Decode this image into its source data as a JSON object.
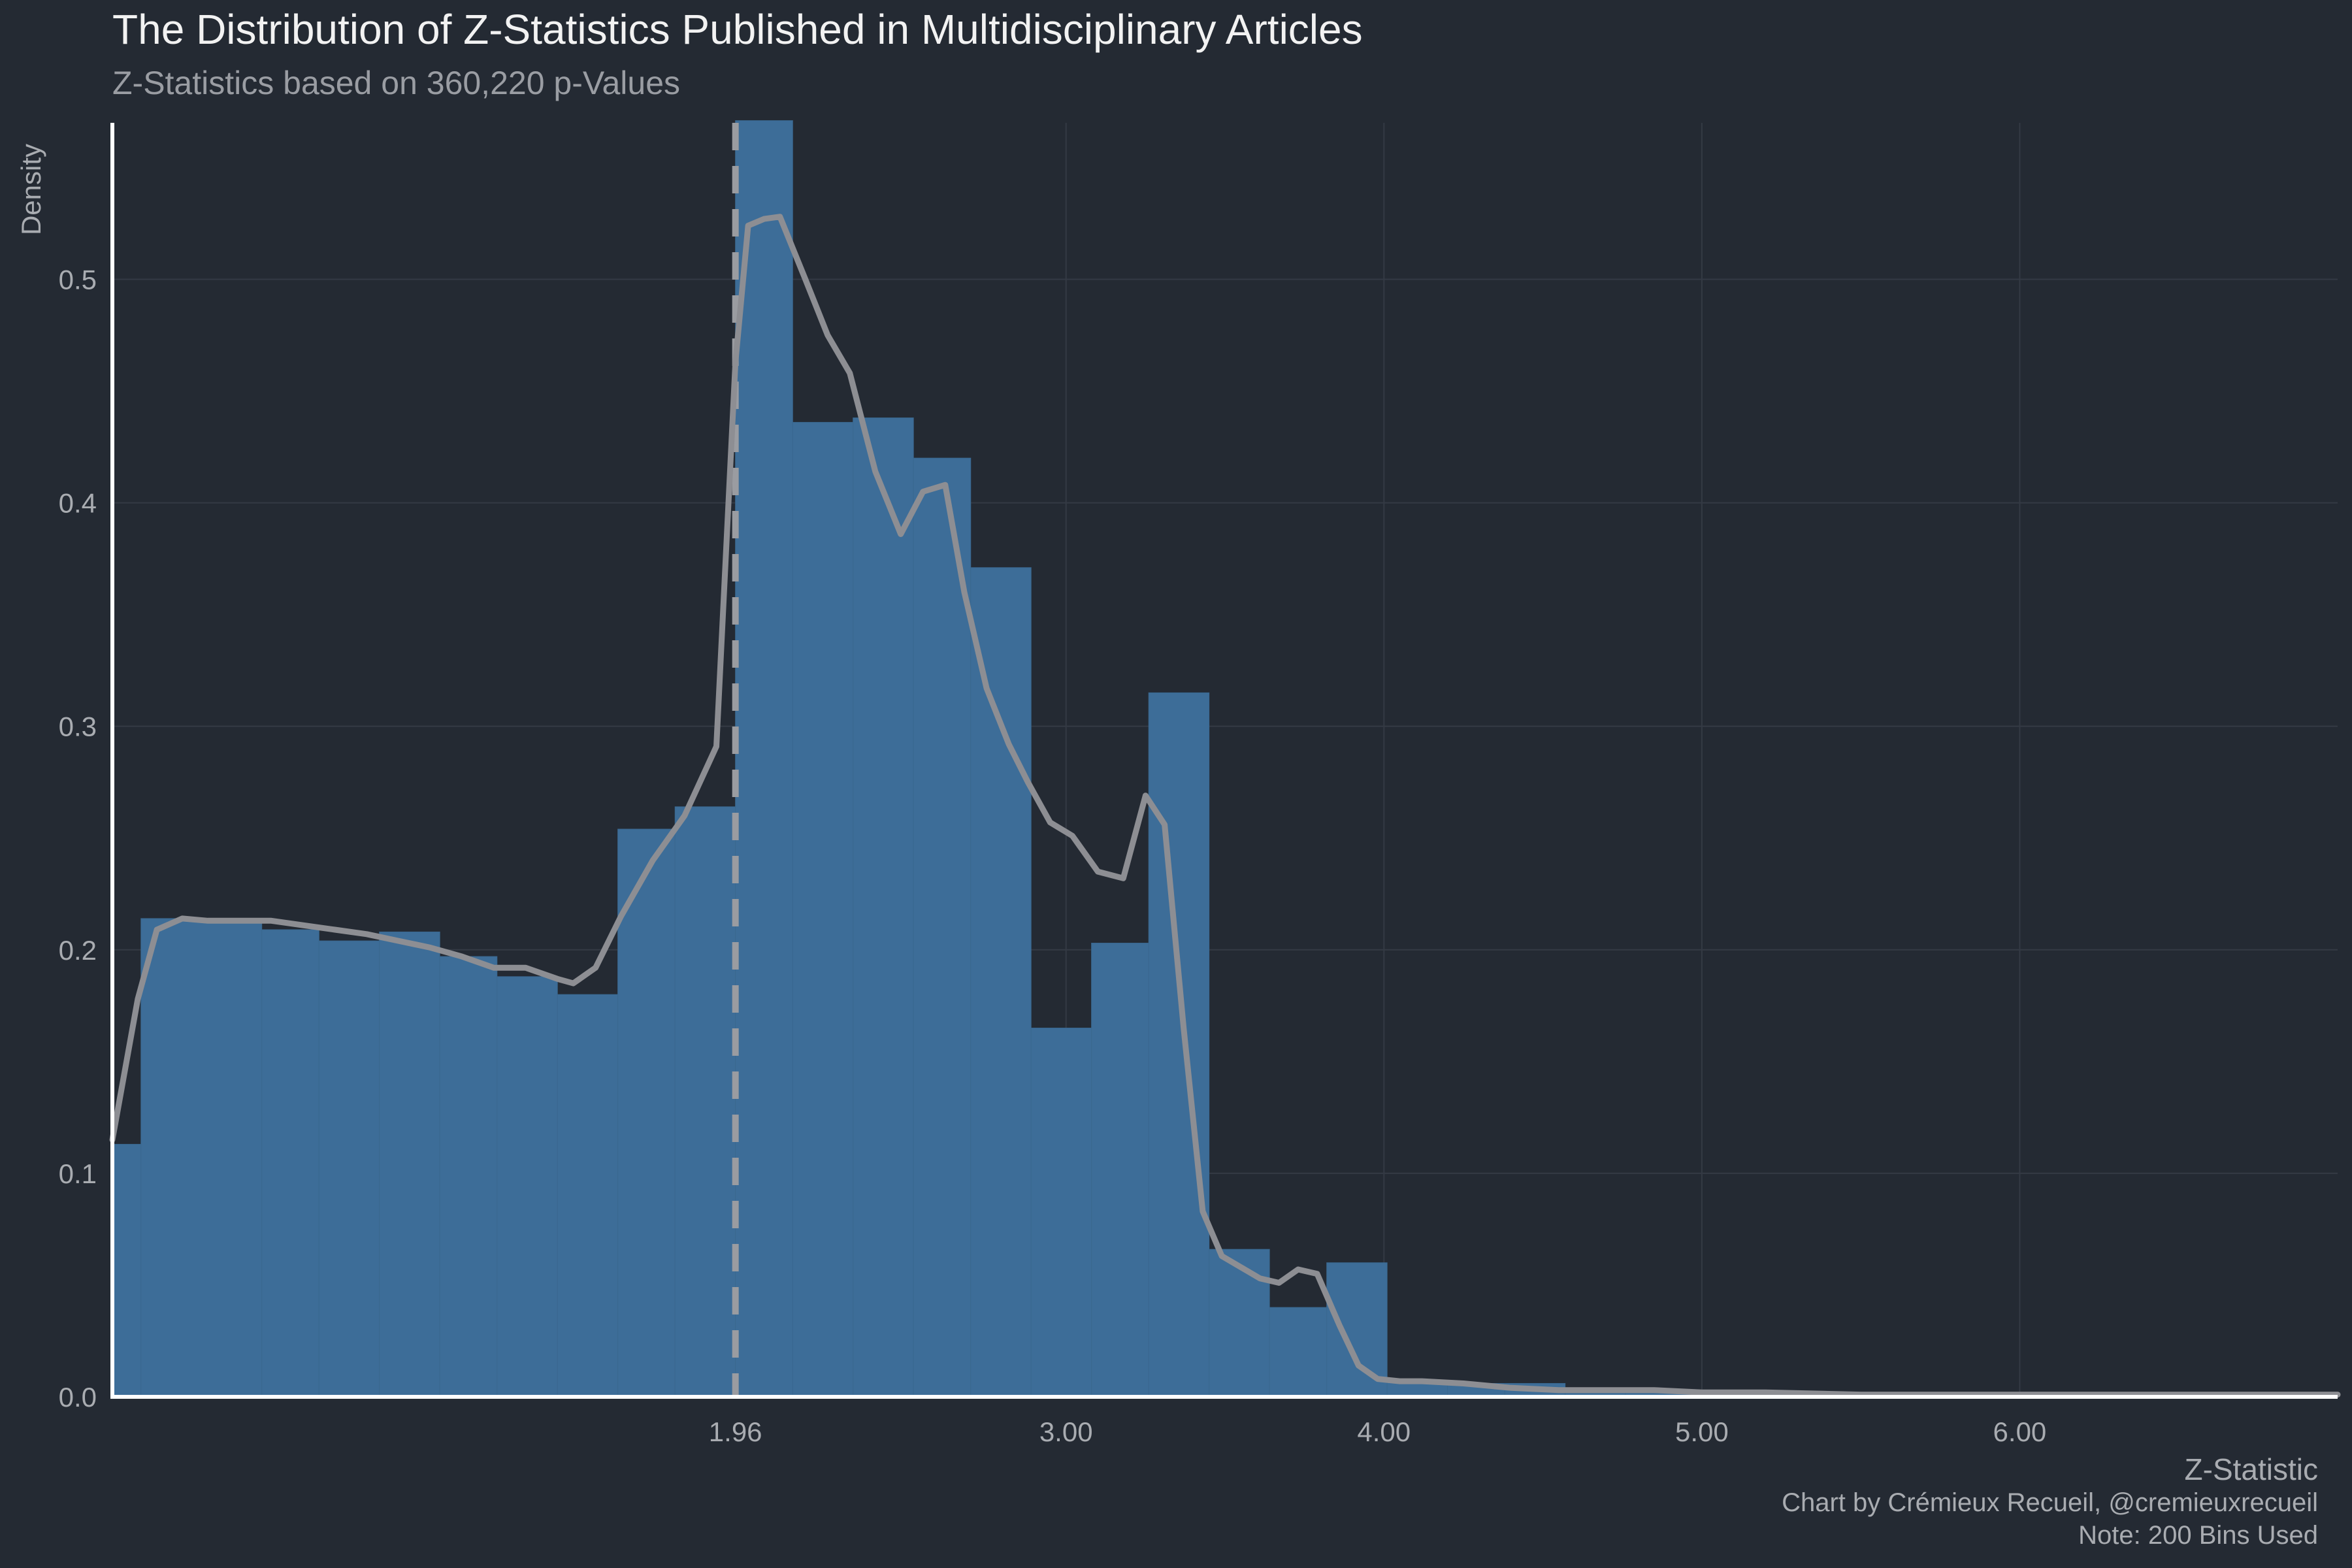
{
  "title": "The Distribution of Z-Statistics Published in Multidisciplinary Articles",
  "subtitle": "Z-Statistics based on 360,220 p-Values",
  "xlabel": "Z-Statistic",
  "ylabel": "Density",
  "caption": [
    "Chart by Crémieux Recueil, @cremieuxrecueil",
    "Note: 200 Bins Used"
  ],
  "colors": {
    "background": "#242a33",
    "bar": "#3d6d98",
    "density": "#8d8e93",
    "grid": "#343a44",
    "text": "#a9acb1"
  },
  "chart_data": {
    "type": "bar",
    "xlim": [
      0,
      7
    ],
    "ylim": [
      0,
      0.57
    ],
    "x_ticks": [
      {
        "value": 1.96,
        "label": "1.96"
      },
      {
        "value": 3.0,
        "label": "3.00"
      },
      {
        "value": 4.0,
        "label": "4.00"
      },
      {
        "value": 5.0,
        "label": "5.00"
      },
      {
        "value": 6.0,
        "label": "6.00"
      }
    ],
    "y_ticks": [
      {
        "value": 0.0,
        "label": "0.0"
      },
      {
        "value": 0.1,
        "label": "0.1"
      },
      {
        "value": 0.2,
        "label": "0.2"
      },
      {
        "value": 0.3,
        "label": "0.3"
      },
      {
        "value": 0.4,
        "label": "0.4"
      },
      {
        "value": 0.5,
        "label": "0.5"
      }
    ],
    "vline": 1.96,
    "bins": [
      {
        "x0": 0.0,
        "x1": 0.09,
        "y": 0.113
      },
      {
        "x0": 0.09,
        "x1": 0.47,
        "y": 0.214
      },
      {
        "x0": 0.47,
        "x1": 0.65,
        "y": 0.209
      },
      {
        "x0": 0.65,
        "x1": 0.84,
        "y": 0.204
      },
      {
        "x0": 0.84,
        "x1": 1.03,
        "y": 0.208
      },
      {
        "x0": 1.03,
        "x1": 1.21,
        "y": 0.197
      },
      {
        "x0": 1.21,
        "x1": 1.4,
        "y": 0.188
      },
      {
        "x0": 1.4,
        "x1": 1.59,
        "y": 0.18
      },
      {
        "x0": 1.59,
        "x1": 1.77,
        "y": 0.254
      },
      {
        "x0": 1.77,
        "x1": 1.96,
        "y": 0.264
      },
      {
        "x0": 1.96,
        "x1": 2.14,
        "y": 0.571
      },
      {
        "x0": 2.14,
        "x1": 2.33,
        "y": 0.436
      },
      {
        "x0": 2.33,
        "x1": 2.52,
        "y": 0.438
      },
      {
        "x0": 2.52,
        "x1": 2.7,
        "y": 0.42
      },
      {
        "x0": 2.7,
        "x1": 2.89,
        "y": 0.371
      },
      {
        "x0": 2.89,
        "x1": 3.08,
        "y": 0.165
      },
      {
        "x0": 3.08,
        "x1": 3.26,
        "y": 0.203
      },
      {
        "x0": 3.26,
        "x1": 3.45,
        "y": 0.315
      },
      {
        "x0": 3.45,
        "x1": 3.64,
        "y": 0.066
      },
      {
        "x0": 3.64,
        "x1": 3.82,
        "y": 0.04
      },
      {
        "x0": 3.82,
        "x1": 4.01,
        "y": 0.06
      },
      {
        "x0": 4.01,
        "x1": 4.2,
        "y": 0.007
      },
      {
        "x0": 4.2,
        "x1": 4.38,
        "y": 0.006
      },
      {
        "x0": 4.38,
        "x1": 4.57,
        "y": 0.006
      },
      {
        "x0": 4.57,
        "x1": 4.76,
        "y": 0.003
      },
      {
        "x0": 4.76,
        "x1": 5.5,
        "y": 0.002
      },
      {
        "x0": 5.5,
        "x1": 7.0,
        "y": 0.001
      }
    ],
    "density": {
      "x": [
        0.0,
        0.08,
        0.14,
        0.22,
        0.3,
        0.4,
        0.5,
        0.6,
        0.7,
        0.8,
        0.9,
        1.0,
        1.1,
        1.2,
        1.3,
        1.4,
        1.45,
        1.52,
        1.6,
        1.7,
        1.8,
        1.9,
        1.96,
        2.0,
        2.05,
        2.1,
        2.18,
        2.25,
        2.32,
        2.4,
        2.48,
        2.55,
        2.62,
        2.68,
        2.75,
        2.82,
        2.88,
        2.95,
        3.02,
        3.1,
        3.18,
        3.25,
        3.31,
        3.37,
        3.43,
        3.49,
        3.55,
        3.61,
        3.67,
        3.73,
        3.79,
        3.86,
        3.92,
        3.98,
        4.05,
        4.12,
        4.25,
        4.4,
        4.55,
        4.7,
        4.85,
        5.0,
        5.2,
        5.5,
        6.0,
        6.5,
        7.0
      ],
      "y": [
        0.115,
        0.178,
        0.209,
        0.214,
        0.213,
        0.213,
        0.213,
        0.211,
        0.209,
        0.207,
        0.204,
        0.201,
        0.197,
        0.192,
        0.192,
        0.187,
        0.185,
        0.192,
        0.215,
        0.24,
        0.26,
        0.291,
        0.463,
        0.524,
        0.527,
        0.528,
        0.5,
        0.475,
        0.458,
        0.414,
        0.386,
        0.405,
        0.408,
        0.36,
        0.317,
        0.292,
        0.275,
        0.257,
        0.251,
        0.235,
        0.232,
        0.269,
        0.256,
        0.165,
        0.083,
        0.063,
        0.058,
        0.053,
        0.051,
        0.057,
        0.055,
        0.032,
        0.014,
        0.008,
        0.007,
        0.007,
        0.006,
        0.004,
        0.003,
        0.003,
        0.003,
        0.002,
        0.002,
        0.001,
        0.001,
        0.001,
        0.001
      ]
    }
  }
}
